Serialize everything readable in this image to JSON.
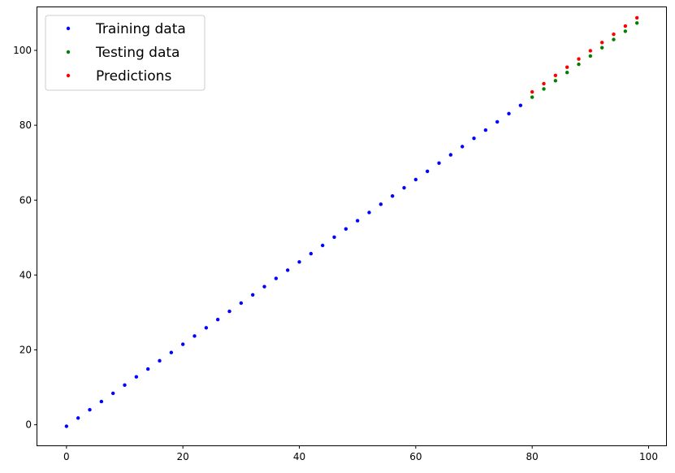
{
  "chart_data": {
    "type": "scatter",
    "title": "",
    "xlabel": "",
    "ylabel": "",
    "xlim": [
      -5,
      103
    ],
    "ylim": [
      -5.5,
      111.5
    ],
    "xticks": [
      0,
      20,
      40,
      60,
      80,
      100
    ],
    "yticks": [
      0,
      20,
      40,
      60,
      80,
      100
    ],
    "grid": false,
    "legend_position": "top-left",
    "series": [
      {
        "name": "Training data",
        "color": "#0000ff",
        "x": [
          0,
          2,
          4,
          6,
          8,
          10,
          12,
          14,
          16,
          18,
          20,
          22,
          24,
          26,
          28,
          30,
          32,
          34,
          36,
          38,
          40,
          42,
          44,
          46,
          48,
          50,
          52,
          54,
          56,
          58,
          60,
          62,
          64,
          66,
          68,
          70,
          72,
          74,
          76,
          78
        ],
        "y": [
          -0.4,
          1.8,
          4.0,
          6.2,
          8.4,
          10.6,
          12.8,
          14.9,
          17.1,
          19.3,
          21.5,
          23.7,
          25.9,
          28.1,
          30.3,
          32.5,
          34.7,
          36.9,
          39.1,
          41.3,
          43.5,
          45.7,
          47.9,
          50.1,
          52.3,
          54.5,
          56.7,
          58.9,
          61.1,
          63.3,
          65.5,
          67.7,
          69.9,
          72.1,
          74.3,
          76.5,
          78.7,
          80.9,
          83.1,
          85.3
        ]
      },
      {
        "name": "Testing data",
        "color": "#008000",
        "x": [
          80,
          82,
          84,
          86,
          88,
          90,
          92,
          94,
          96,
          98
        ],
        "y": [
          87.5,
          89.7,
          91.9,
          94.1,
          96.3,
          98.5,
          100.7,
          102.9,
          105.1,
          107.3
        ]
      },
      {
        "name": "Predictions",
        "color": "#ff0000",
        "x": [
          80,
          82,
          84,
          86,
          88,
          90,
          92,
          94,
          96,
          98
        ],
        "y": [
          88.9,
          91.1,
          93.3,
          95.5,
          97.7,
          99.9,
          102.1,
          104.3,
          106.5,
          108.7
        ]
      }
    ]
  }
}
